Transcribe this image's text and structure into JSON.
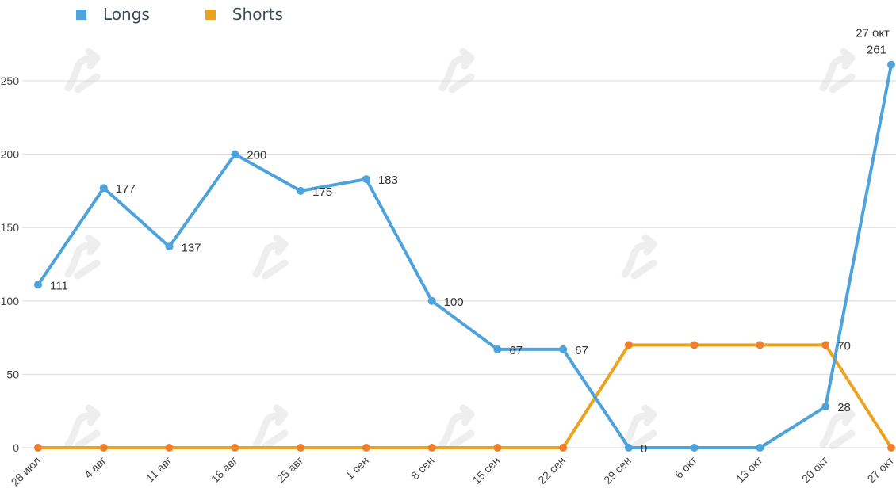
{
  "legend": {
    "items": [
      {
        "label": "Longs",
        "color": "#4fa3dd"
      },
      {
        "label": "Shorts",
        "color": "#eba21f"
      }
    ]
  },
  "chart_data": {
    "type": "line",
    "categories": [
      "28 июл",
      "4 авг",
      "11 авг",
      "18 авг",
      "25 авг",
      "1 сен",
      "8 сен",
      "15 сен",
      "22 сен",
      "29 сен",
      "6 окт",
      "13 окт",
      "20 окт",
      "27 окт"
    ],
    "ylim": [
      0,
      275
    ],
    "yticks": [
      0,
      50,
      100,
      150,
      200,
      250
    ],
    "grid": true,
    "legend_position": "top-left",
    "series": [
      {
        "name": "Longs",
        "color": "#4fa3dd",
        "values": [
          111,
          177,
          137,
          200,
          175,
          183,
          100,
          67,
          67,
          0,
          0,
          0,
          28,
          261
        ],
        "labels": [
          "111",
          "177",
          "137",
          "200",
          "175",
          "183",
          "100",
          "67",
          "67",
          "0",
          "",
          "",
          "28",
          "261"
        ]
      },
      {
        "name": "Shorts",
        "color": "#eba21f",
        "marker_color": "#f07f2c",
        "values": [
          0,
          0,
          0,
          0,
          0,
          0,
          0,
          0,
          0,
          70,
          70,
          70,
          70,
          0
        ],
        "labels": [
          "",
          "",
          "",
          "",
          "",
          "",
          "",
          "",
          "",
          "",
          "",
          "",
          "70",
          ""
        ]
      }
    ],
    "annotation": "27 окт"
  }
}
